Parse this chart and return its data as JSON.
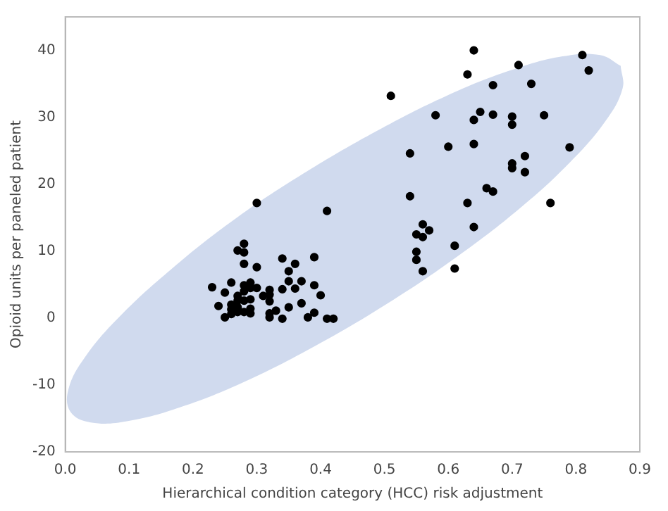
{
  "chart_data": {
    "type": "scatter",
    "xlabel": "Hierarchical condition category (HCC) risk adjustment",
    "ylabel": "Opioid units per paneled patient",
    "xlim": [
      0,
      0.9
    ],
    "xticks": [
      {
        "value": 0,
        "label": "0.0"
      },
      0.1,
      0.2,
      0.3,
      0.4,
      0.5,
      0.6,
      0.7,
      0.8,
      0.9
    ],
    "ylim": [
      -20,
      45
    ],
    "yticks": [
      -20,
      -10,
      0,
      10,
      20,
      30,
      40
    ],
    "grid": false,
    "legend": false,
    "series": [
      {
        "type": "area",
        "color": "#d0daee",
        "marker": "none",
        "x": [
          0.87,
          0.873,
          0.846,
          0.791,
          0.712,
          0.614,
          0.505,
          0.391,
          0.281,
          0.181,
          0.098,
          0.04,
          0.008,
          0.005,
          0.032,
          0.087,
          0.166,
          0.263,
          0.373,
          0.487,
          0.597,
          0.697,
          0.779,
          0.838,
          0.87
        ],
        "values": [
          37.7,
          34.3,
          29.4,
          23.3,
          16.4,
          9.2,
          2.2,
          -4.2,
          -9.5,
          -13.3,
          -15.4,
          -15.6,
          -14.0,
          -10.6,
          -5.7,
          0.4,
          7.3,
          14.6,
          21.6,
          27.9,
          33.2,
          37.0,
          39.1,
          39.3,
          37.7
        ]
      },
      {
        "color": "#000000",
        "marker": "circle",
        "x": [
          0.64,
          0.81,
          0.82,
          0.71,
          0.63,
          0.73,
          0.67,
          0.51,
          0.65,
          0.67,
          0.58,
          0.64,
          0.7,
          0.7,
          0.75,
          0.54,
          0.6,
          0.64,
          0.79,
          0.72,
          0.7,
          0.7,
          0.72,
          0.54,
          0.66,
          0.67,
          0.63,
          0.76,
          0.3,
          0.41,
          0.56,
          0.57,
          0.55,
          0.56,
          0.64,
          0.61,
          0.55,
          0.55,
          0.56,
          0.61,
          0.23,
          0.24,
          0.25,
          0.25,
          0.26,
          0.26,
          0.26,
          0.26,
          0.27,
          0.27,
          0.27,
          0.27,
          0.27,
          0.28,
          0.28,
          0.28,
          0.28,
          0.28,
          0.28,
          0.28,
          0.29,
          0.29,
          0.29,
          0.29,
          0.29,
          0.3,
          0.3,
          0.31,
          0.32,
          0.32,
          0.32,
          0.32,
          0.32,
          0.33,
          0.34,
          0.34,
          0.34,
          0.35,
          0.35,
          0.35,
          0.36,
          0.36,
          0.37,
          0.37,
          0.38,
          0.39,
          0.39,
          0.39,
          0.4,
          0.41,
          0.42
        ],
        "values": [
          40.0,
          39.3,
          37.0,
          37.8,
          36.4,
          35.0,
          34.8,
          33.2,
          30.8,
          30.4,
          30.3,
          29.6,
          30.1,
          28.9,
          30.3,
          24.6,
          25.6,
          26.0,
          25.5,
          24.2,
          23.1,
          22.4,
          21.8,
          18.2,
          19.4,
          18.9,
          17.2,
          17.2,
          17.2,
          16.0,
          14.0,
          13.1,
          12.5,
          12.1,
          13.6,
          10.8,
          9.9,
          8.7,
          7.0,
          7.4,
          4.6,
          1.8,
          3.8,
          0.1,
          5.3,
          2.0,
          1.3,
          0.6,
          10.1,
          3.3,
          2.6,
          1.6,
          0.9,
          11.1,
          9.8,
          8.1,
          4.9,
          4.0,
          2.6,
          0.9,
          5.3,
          4.5,
          2.8,
          1.4,
          0.7,
          7.6,
          4.5,
          3.3,
          4.2,
          3.5,
          2.5,
          0.7,
          0.1,
          1.1,
          8.9,
          4.3,
          -0.1,
          7.0,
          5.5,
          1.6,
          8.1,
          4.4,
          5.5,
          2.2,
          0.1,
          9.1,
          4.9,
          0.8,
          3.4,
          -0.1,
          -0.1
        ]
      }
    ]
  }
}
